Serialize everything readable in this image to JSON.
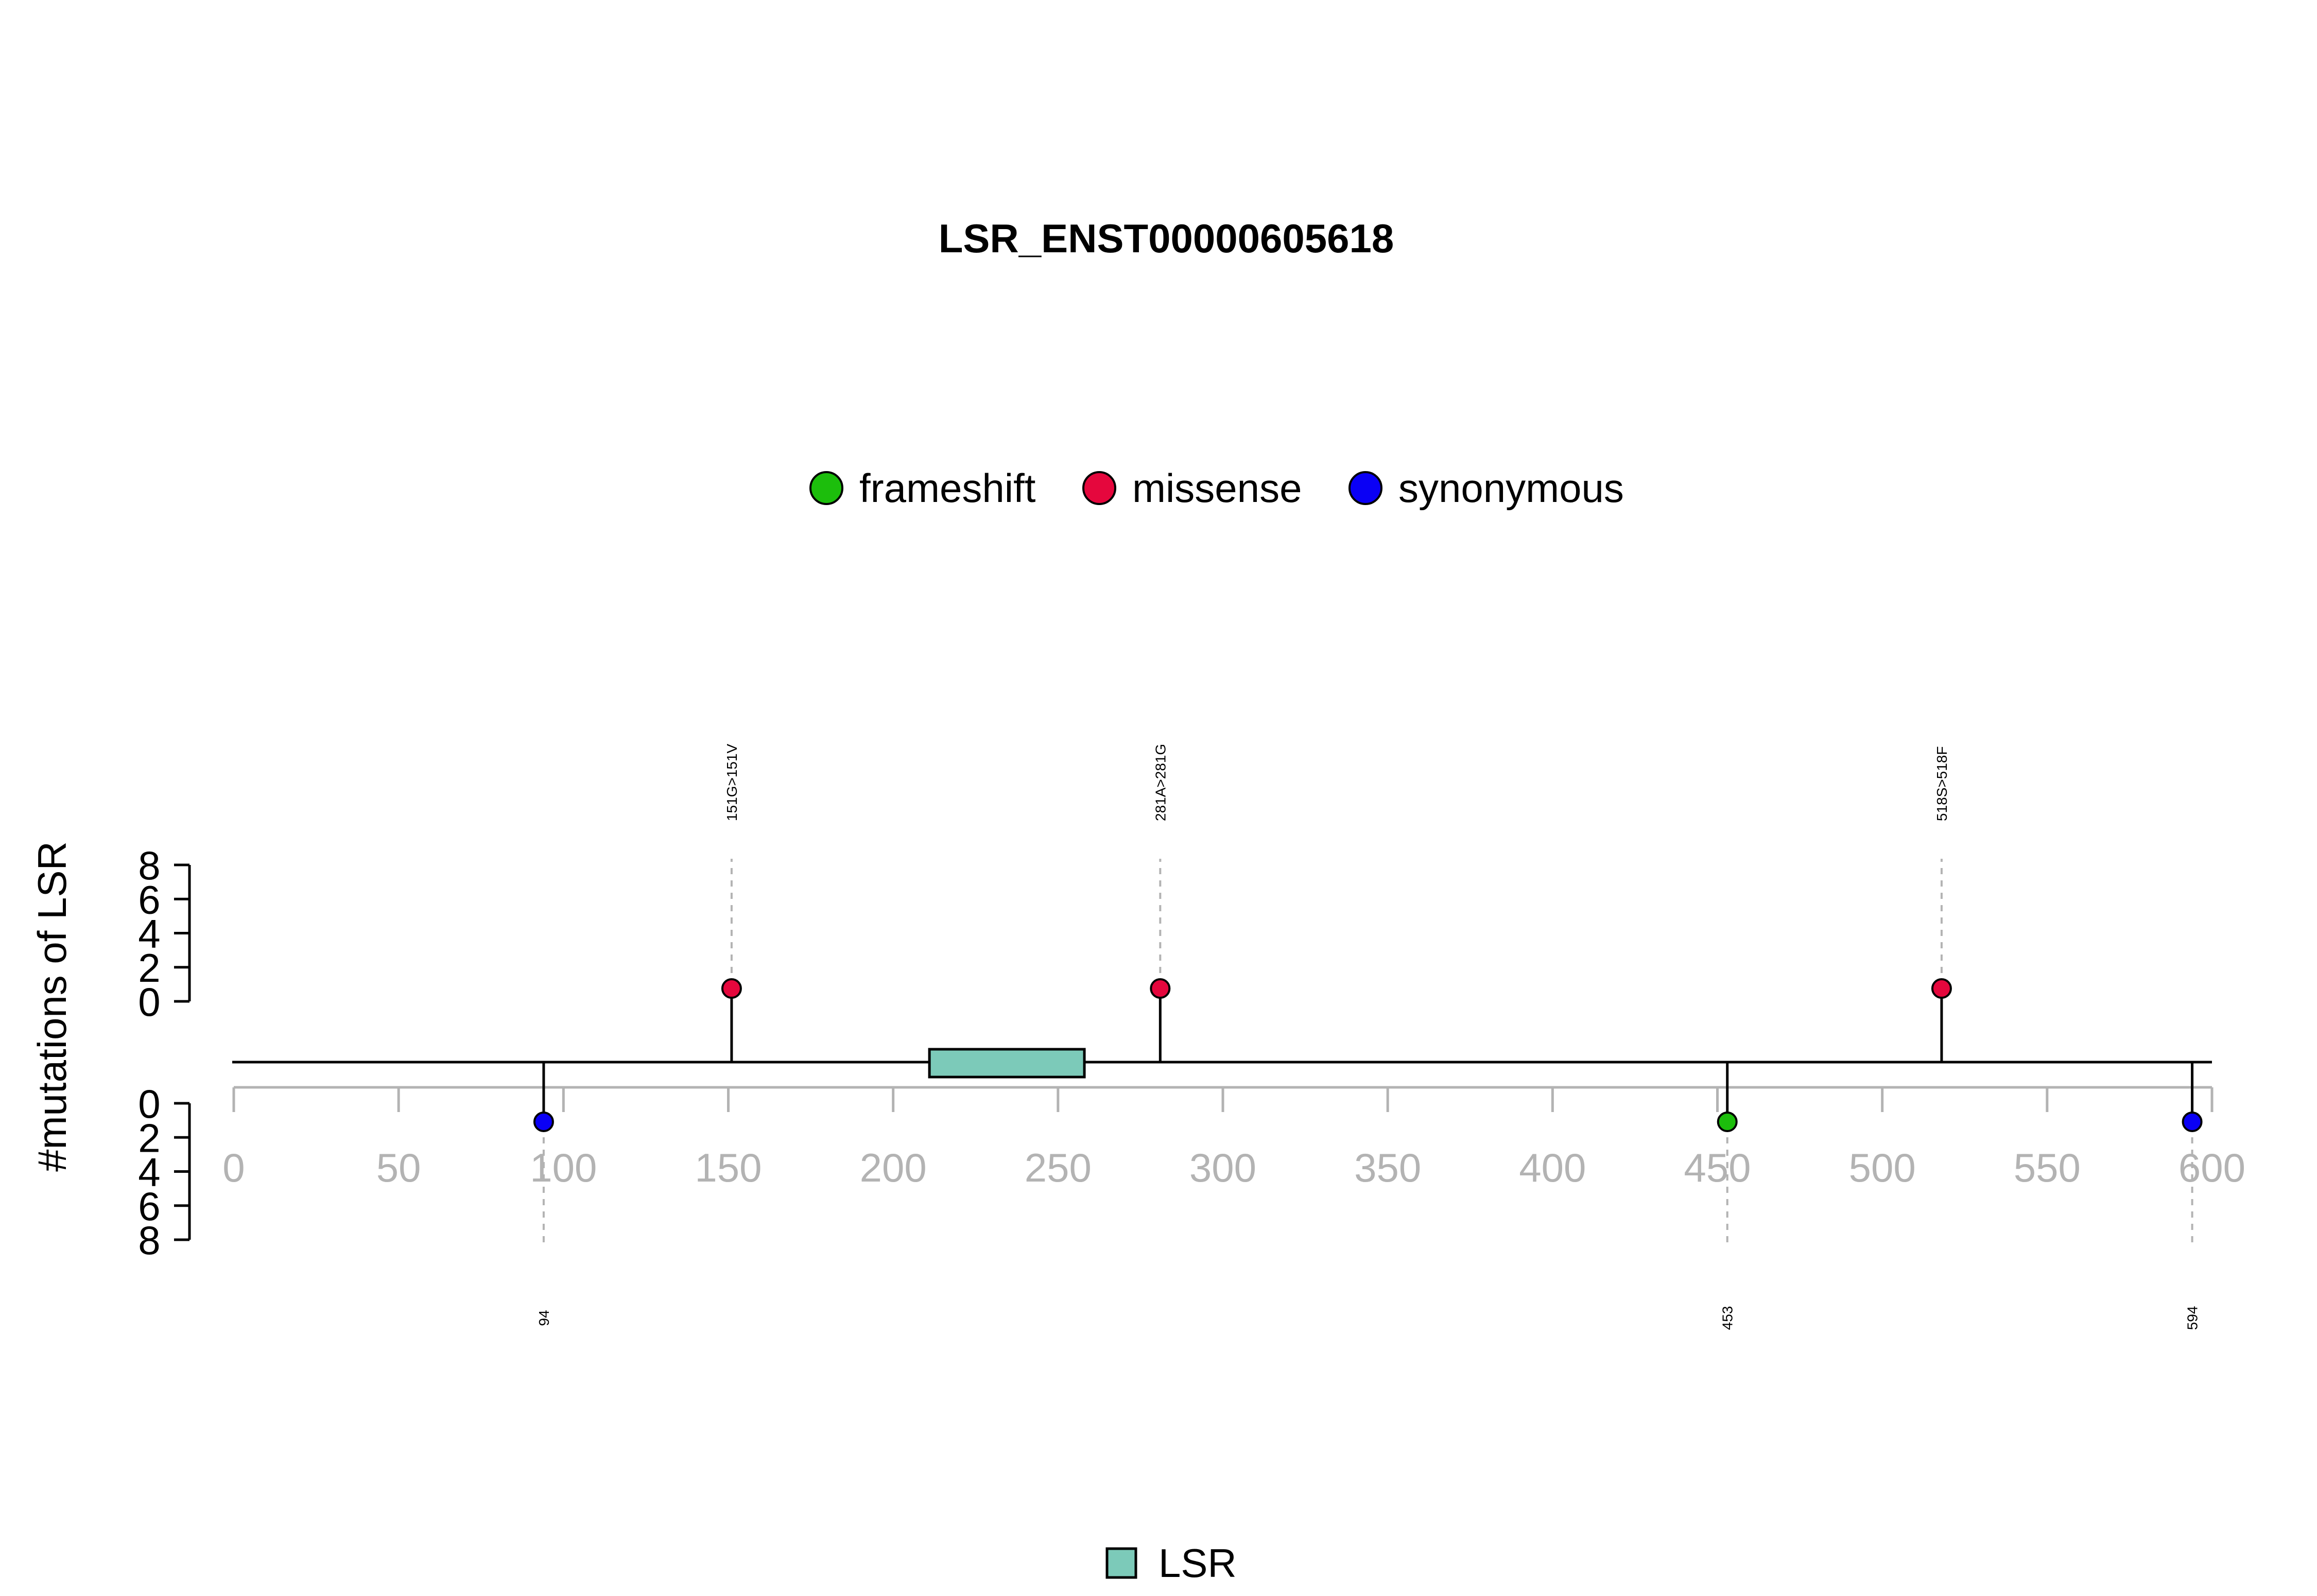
{
  "chart_data": {
    "type": "lollipop",
    "title": "LSR_ENST00000605618",
    "ylabel": "#mutations of LSR",
    "xlim": [
      0,
      600
    ],
    "x_ticks": [
      0,
      50,
      100,
      150,
      200,
      250,
      300,
      350,
      400,
      450,
      500,
      550,
      600
    ],
    "y_ticks": [
      0,
      2,
      4,
      6,
      8
    ],
    "ylim": [
      0,
      8
    ],
    "protein_length": 600,
    "legend_mutation_types": [
      {
        "name": "frameshift",
        "color": "#1CBE0C"
      },
      {
        "name": "missense",
        "color": "#E5073D"
      },
      {
        "name": "synonymous",
        "color": "#0A00F5"
      }
    ],
    "domains": [
      {
        "name": "LSR",
        "start": 211,
        "end": 258,
        "color": "#7CCAB9"
      }
    ],
    "mutations": [
      {
        "position": 151,
        "label": "151G>151V",
        "type": "missense",
        "count": 1,
        "side": "top"
      },
      {
        "position": 281,
        "label": "281A>281G",
        "type": "missense",
        "count": 1,
        "side": "top"
      },
      {
        "position": 518,
        "label": "518S>518F",
        "type": "missense",
        "count": 1,
        "side": "top"
      },
      {
        "position": 94,
        "label": "94",
        "type": "synonymous",
        "count": 1,
        "side": "bottom"
      },
      {
        "position": 453,
        "label": "453",
        "type": "frameshift",
        "count": 1,
        "side": "bottom"
      },
      {
        "position": 594,
        "label": "594",
        "type": "synonymous",
        "count": 1,
        "side": "bottom"
      }
    ]
  }
}
